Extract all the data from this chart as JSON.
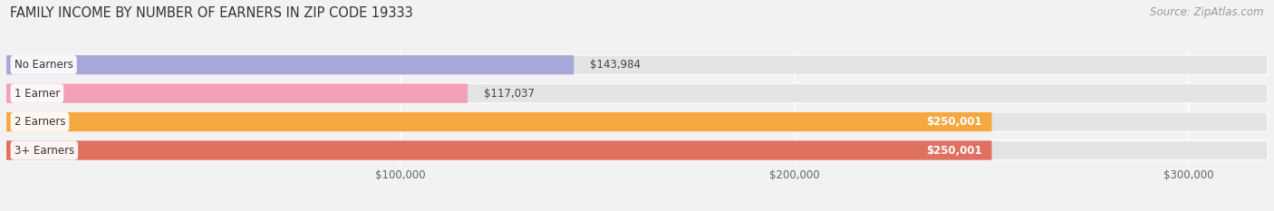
{
  "title": "FAMILY INCOME BY NUMBER OF EARNERS IN ZIP CODE 19333",
  "source": "Source: ZipAtlas.com",
  "categories": [
    "No Earners",
    "1 Earner",
    "2 Earners",
    "3+ Earners"
  ],
  "values": [
    143984,
    117037,
    250001,
    250001
  ],
  "bar_colors": [
    "#a8a8d8",
    "#f4a0b8",
    "#f5a840",
    "#e07060"
  ],
  "label_colors": [
    "#333333",
    "#333333",
    "#ffffff",
    "#ffffff"
  ],
  "xlim_max": 320000,
  "xticks": [
    100000,
    200000,
    300000
  ],
  "xticklabels": [
    "$100,000",
    "$200,000",
    "$300,000"
  ],
  "value_labels": [
    "$143,984",
    "$117,037",
    "$250,001",
    "$250,001"
  ],
  "bar_height": 0.68,
  "background_color": "#f2f2f2",
  "bar_bg_color": "#e4e4e4",
  "title_fontsize": 10.5,
  "source_fontsize": 8.5,
  "cat_label_fontsize": 8.5,
  "value_label_fontsize": 8.5,
  "tick_fontsize": 8.5,
  "fig_width": 14.06,
  "fig_height": 2.33
}
